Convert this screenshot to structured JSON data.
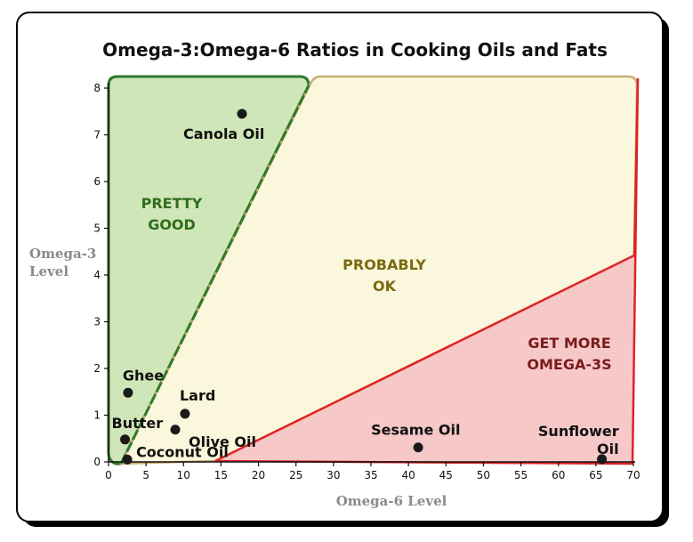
{
  "chart_data": {
    "type": "scatter",
    "title": "Omega-3:Omega-6 Ratios in Cooking Oils and Fats",
    "xlabel": "Omega-6 Level",
    "ylabel": "Omega-3 Level",
    "xlim": [
      0,
      70
    ],
    "ylim": [
      0,
      8.2
    ],
    "xticks": [
      0,
      5,
      10,
      15,
      20,
      25,
      30,
      35,
      40,
      45,
      50,
      55,
      60,
      65,
      70
    ],
    "yticks": [
      0,
      1,
      2,
      3,
      4,
      5,
      6,
      7,
      8
    ],
    "grid": false,
    "points": [
      {
        "name": "Canola Oil",
        "x": 17.8,
        "y": 7.45
      },
      {
        "name": "Ghee",
        "x": 2.6,
        "y": 1.48
      },
      {
        "name": "Lard",
        "x": 10.2,
        "y": 1.03
      },
      {
        "name": "Butter",
        "x": 2.2,
        "y": 0.48
      },
      {
        "name": "Olive Oil",
        "x": 8.9,
        "y": 0.69
      },
      {
        "name": "Coconut Oil",
        "x": 2.5,
        "y": 0.05
      },
      {
        "name": "Sesame Oil",
        "x": 41.3,
        "y": 0.31
      },
      {
        "name": "Sunflower Oil",
        "x": 65.8,
        "y": 0.06
      }
    ],
    "regions": [
      {
        "label": "PRETTY GOOD",
        "fill": "#cfe6b9",
        "stroke": "#2f7a2a",
        "text_color": "#2f6e1d"
      },
      {
        "label": "PROBABLY OK",
        "fill": "#fbf7dc",
        "stroke": "#c9ae72",
        "text_color": "#7a6a12"
      },
      {
        "label": "GET MORE OMEGA-3S",
        "fill": "#f7c8c8",
        "stroke": "#dd2424",
        "text_color": "#7a1c1c"
      }
    ]
  }
}
